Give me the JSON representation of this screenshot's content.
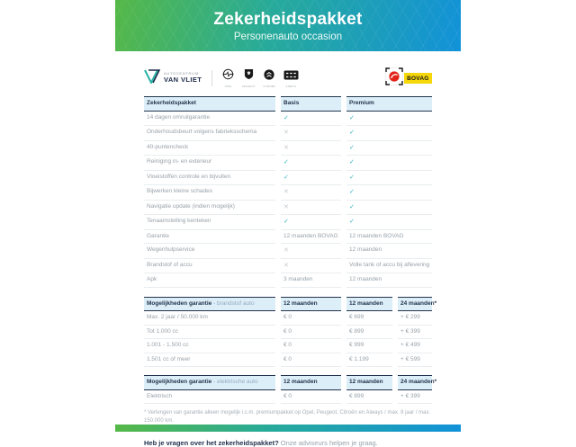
{
  "header": {
    "title": "Zekerheidspakket",
    "subtitle": "Personenauto occasion"
  },
  "branding": {
    "dealer_top": "AUTOCENTRUM",
    "dealer_bottom": "VAN VLIET",
    "brands": [
      "OPEL",
      "PEUGEOT",
      "CITROËN",
      "AIWAYS"
    ],
    "bovag_label": "BOVAG"
  },
  "comparison_table": {
    "headers": [
      "Zekerheidspakket",
      "Basis",
      "Premium"
    ],
    "rows": [
      {
        "label": "14 dagen omruilgarantie",
        "basis": "check",
        "premium": "check"
      },
      {
        "label": "Onderhoudsbeurt volgens fabrieksschema",
        "basis": "cross",
        "premium": "check"
      },
      {
        "label": "40-puntencheck",
        "basis": "cross",
        "premium": "check"
      },
      {
        "label": "Reiniging in- en exterieur",
        "basis": "check",
        "premium": "check"
      },
      {
        "label": "Vloeistoffen controle en bijvullen",
        "basis": "check",
        "premium": "check"
      },
      {
        "label": "Bijwerken kleine schades",
        "basis": "cross",
        "premium": "check"
      },
      {
        "label": "Navigatie update (indien mogelijk)",
        "basis": "cross",
        "premium": "check"
      },
      {
        "label": "Tenaamstelling kenteken",
        "basis": "check",
        "premium": "check"
      },
      {
        "label": "Garantie",
        "basis": "12 maanden BOVAG",
        "premium": "12 maanden BOVAG"
      },
      {
        "label": "Wegenhulpservice",
        "basis": "cross",
        "premium": "12 maanden"
      },
      {
        "label": "Brandstof of accu",
        "basis": "cross",
        "premium": "Volle tank of accu bij aflevering"
      },
      {
        "label": "Apk",
        "basis": "3 maanden",
        "premium": "12 maanden"
      }
    ]
  },
  "fuel_warranty_table": {
    "title": "Mogelijkheden garantie",
    "title_suffix": "- brandstof auto",
    "headers": [
      "12 maanden",
      "12 maanden",
      "24 maanden*"
    ],
    "rows": [
      {
        "label": "Max. 2 jaar / 50.000 km",
        "values": [
          "€ 0",
          "€ 699",
          "+ € 299"
        ]
      },
      {
        "label": "Tot 1.000 cc",
        "values": [
          "€ 0",
          "€ 899",
          "+ € 399"
        ]
      },
      {
        "label": "1.001 - 1.500 cc",
        "values": [
          "€ 0",
          "€ 999",
          "+ € 499"
        ]
      },
      {
        "label": "1.501 cc of meer",
        "values": [
          "€ 0",
          "€ 1.199",
          "+ € 599"
        ]
      }
    ]
  },
  "electric_warranty_table": {
    "title": "Mogelijkheden garantie",
    "title_suffix": "- elektrische auto",
    "headers": [
      "12 maanden",
      "12 maanden",
      "24 maanden*"
    ],
    "rows": [
      {
        "label": "Elektrisch",
        "values": [
          "€ 0",
          "€ 899",
          "+ € 399"
        ]
      }
    ]
  },
  "footnote": "* Verlengen van garantie alleen mogelijk i.c.m. premiumpakket op Opel, Peugeot, Citroën en Aiways / max. 8 jaar / max. 150.000 km.",
  "footer": {
    "question_bold": "Heb je vragen over het zekerheidspakket?",
    "question_rest": "Onze adviseurs helpen je graag."
  },
  "colors": {
    "gradient_green": "#55b847",
    "gradient_blue": "#1292d8",
    "check": "#2fb3c1",
    "cross": "#c6cbd0",
    "table_header_bg": "#dceef7",
    "navy": "#24344e",
    "bovag_yellow": "#f5d70a",
    "bovag_red": "#e2231a"
  }
}
